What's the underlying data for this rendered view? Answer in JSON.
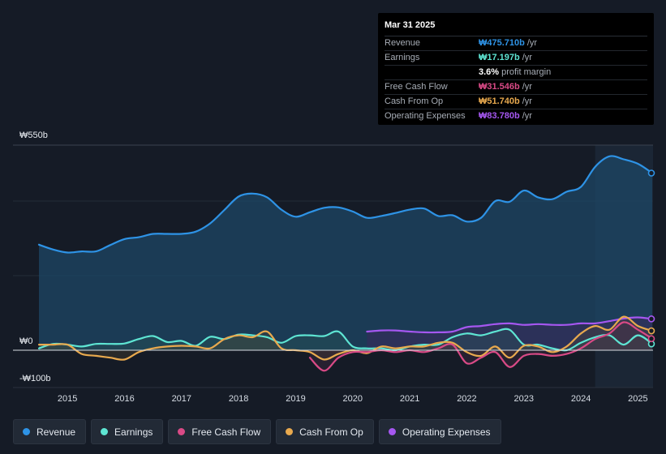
{
  "tooltip": {
    "date": "Mar 31 2025",
    "rows": [
      {
        "label": "Revenue",
        "value": "₩475.710b",
        "unit": "/yr",
        "color": "#2e93e6"
      },
      {
        "label": "Earnings",
        "value": "₩17.197b",
        "unit": "/yr",
        "color": "#5ee5d3"
      },
      {
        "label": "",
        "value": "3.6%",
        "unit": "profit margin",
        "color": "#ffffff"
      },
      {
        "label": "Free Cash Flow",
        "value": "₩31.546b",
        "unit": "/yr",
        "color": "#d94a86"
      },
      {
        "label": "Cash From Op",
        "value": "₩51.740b",
        "unit": "/yr",
        "color": "#e8a94e"
      },
      {
        "label": "Operating Expenses",
        "value": "₩83.780b",
        "unit": "/yr",
        "color": "#a557f0"
      }
    ]
  },
  "legend": [
    {
      "label": "Revenue",
      "color": "#2e93e6"
    },
    {
      "label": "Earnings",
      "color": "#5ee5d3"
    },
    {
      "label": "Free Cash Flow",
      "color": "#d94a86"
    },
    {
      "label": "Cash From Op",
      "color": "#e8a94e"
    },
    {
      "label": "Operating Expenses",
      "color": "#a557f0"
    }
  ],
  "chart_data": {
    "type": "area",
    "title": "",
    "xlabel": "",
    "ylabel": "",
    "y_axis_labels": [
      "₩550b",
      "₩0",
      "-₩100b"
    ],
    "ylim": [
      -100,
      550
    ],
    "xlim": [
      2014.5,
      2025.25
    ],
    "x_ticks": [
      "2015",
      "2016",
      "2017",
      "2018",
      "2019",
      "2020",
      "2021",
      "2022",
      "2023",
      "2024",
      "2025"
    ],
    "x_tick_values": [
      2015,
      2016,
      2017,
      2018,
      2019,
      2020,
      2021,
      2022,
      2023,
      2024,
      2025
    ],
    "forecast_shade_start": 2024.25,
    "series": [
      {
        "name": "Revenue",
        "color": "#2e93e6",
        "x": [
          2014.5,
          2014.75,
          2015.0,
          2015.25,
          2015.5,
          2015.75,
          2016.0,
          2016.25,
          2016.5,
          2016.75,
          2017.0,
          2017.25,
          2017.5,
          2017.75,
          2018.0,
          2018.25,
          2018.5,
          2018.75,
          2019.0,
          2019.25,
          2019.5,
          2019.75,
          2020.0,
          2020.25,
          2020.5,
          2020.75,
          2021.0,
          2021.25,
          2021.5,
          2021.75,
          2022.0,
          2022.25,
          2022.5,
          2022.75,
          2023.0,
          2023.25,
          2023.5,
          2023.75,
          2024.0,
          2024.25,
          2024.5,
          2024.75,
          2025.0,
          2025.25
        ],
        "values": [
          283,
          270,
          262,
          265,
          265,
          282,
          298,
          303,
          312,
          312,
          312,
          318,
          340,
          376,
          412,
          420,
          410,
          377,
          358,
          370,
          382,
          383,
          372,
          355,
          360,
          368,
          377,
          380,
          360,
          362,
          345,
          355,
          400,
          398,
          428,
          410,
          405,
          425,
          438,
          492,
          520,
          512,
          500,
          475
        ]
      },
      {
        "name": "Earnings",
        "color": "#5ee5d3",
        "x": [
          2014.5,
          2014.75,
          2015.0,
          2015.25,
          2015.5,
          2015.75,
          2016.0,
          2016.25,
          2016.5,
          2016.75,
          2017.0,
          2017.25,
          2017.5,
          2017.75,
          2018.0,
          2018.25,
          2018.5,
          2018.75,
          2019.0,
          2019.25,
          2019.5,
          2019.75,
          2020.0,
          2020.25,
          2020.5,
          2020.75,
          2021.0,
          2021.25,
          2021.5,
          2021.75,
          2022.0,
          2022.25,
          2022.5,
          2022.75,
          2023.0,
          2023.25,
          2023.5,
          2023.75,
          2024.0,
          2024.25,
          2024.5,
          2024.75,
          2025.0,
          2025.25
        ],
        "values": [
          5,
          17,
          15,
          10,
          17,
          17,
          18,
          30,
          38,
          22,
          25,
          12,
          36,
          30,
          42,
          40,
          35,
          20,
          38,
          40,
          38,
          50,
          10,
          5,
          5,
          0,
          10,
          15,
          15,
          35,
          45,
          40,
          50,
          55,
          15,
          15,
          5,
          0,
          20,
          35,
          40,
          15,
          40,
          17
        ]
      },
      {
        "name": "Free Cash Flow",
        "color": "#d94a86",
        "x": [
          2019.25,
          2019.5,
          2019.75,
          2020.0,
          2020.25,
          2020.5,
          2020.75,
          2021.0,
          2021.25,
          2021.5,
          2021.75,
          2022.0,
          2022.25,
          2022.5,
          2022.75,
          2023.0,
          2023.25,
          2023.5,
          2023.75,
          2024.0,
          2024.25,
          2024.5,
          2024.75,
          2025.0,
          2025.25
        ],
        "values": [
          -20,
          -55,
          -20,
          -5,
          -5,
          0,
          -5,
          0,
          -5,
          5,
          15,
          -35,
          -20,
          -5,
          -45,
          -15,
          -10,
          -15,
          -10,
          5,
          30,
          45,
          75,
          55,
          31
        ]
      },
      {
        "name": "Cash From Op",
        "color": "#e8a94e",
        "x": [
          2014.5,
          2014.75,
          2015.0,
          2015.25,
          2015.5,
          2015.75,
          2016.0,
          2016.25,
          2016.5,
          2016.75,
          2017.0,
          2017.25,
          2017.5,
          2017.75,
          2018.0,
          2018.25,
          2018.5,
          2018.75,
          2019.0,
          2019.25,
          2019.5,
          2019.75,
          2020.0,
          2020.25,
          2020.5,
          2020.75,
          2021.0,
          2021.25,
          2021.5,
          2021.75,
          2022.0,
          2022.25,
          2022.5,
          2022.75,
          2023.0,
          2023.25,
          2023.5,
          2023.75,
          2024.0,
          2024.25,
          2024.5,
          2024.75,
          2025.0,
          2025.25
        ],
        "values": [
          15,
          15,
          15,
          -10,
          -15,
          -20,
          -25,
          -5,
          5,
          10,
          12,
          10,
          5,
          30,
          40,
          35,
          50,
          5,
          0,
          -5,
          -25,
          -10,
          0,
          -8,
          10,
          5,
          10,
          10,
          20,
          20,
          -5,
          -15,
          10,
          -20,
          12,
          10,
          -5,
          10,
          45,
          65,
          55,
          90,
          65,
          52
        ]
      },
      {
        "name": "Operating Expenses",
        "color": "#a557f0",
        "x": [
          2020.25,
          2020.5,
          2020.75,
          2021.0,
          2021.25,
          2021.5,
          2021.75,
          2022.0,
          2022.25,
          2022.5,
          2022.75,
          2023.0,
          2023.25,
          2023.5,
          2023.75,
          2024.0,
          2024.25,
          2024.5,
          2024.75,
          2025.0,
          2025.25
        ],
        "values": [
          50,
          53,
          53,
          50,
          48,
          48,
          50,
          62,
          65,
          70,
          72,
          68,
          70,
          68,
          68,
          72,
          72,
          78,
          85,
          88,
          84
        ]
      }
    ]
  }
}
